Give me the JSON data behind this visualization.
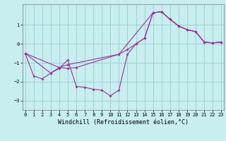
{
  "xlabel": "Windchill (Refroidissement éolien,°C)",
  "bg_color": "#c8eef0",
  "grid_color": "#99cccc",
  "line_color": "#993399",
  "series": [
    {
      "x": [
        0,
        1,
        2,
        3,
        4,
        5,
        6,
        7,
        8,
        9,
        10,
        11,
        12,
        13,
        14,
        15,
        16,
        17,
        18,
        19,
        20,
        21,
        22,
        23
      ],
      "y": [
        -0.5,
        -1.7,
        -1.85,
        -1.55,
        -1.3,
        -0.85,
        -2.25,
        -2.3,
        -2.4,
        -2.45,
        -2.75,
        -2.45,
        -0.55,
        0.0,
        0.3,
        1.65,
        1.7,
        1.3,
        0.95,
        0.75,
        0.65,
        0.1,
        0.05,
        0.1
      ]
    },
    {
      "x": [
        0,
        3,
        4,
        5,
        6,
        11,
        12,
        13,
        14,
        15,
        16,
        17,
        18,
        19,
        20,
        21,
        22,
        23
      ],
      "y": [
        -0.5,
        -1.55,
        -1.25,
        -1.3,
        -1.25,
        -0.55,
        -0.3,
        0.0,
        0.3,
        1.65,
        1.7,
        1.3,
        0.95,
        0.75,
        0.65,
        0.1,
        0.05,
        0.1
      ]
    },
    {
      "x": [
        0,
        4,
        5,
        11,
        15,
        16,
        17,
        18,
        19,
        20,
        21,
        22,
        23
      ],
      "y": [
        -0.5,
        -1.25,
        -1.1,
        -0.55,
        1.65,
        1.7,
        1.3,
        0.95,
        0.75,
        0.65,
        0.1,
        0.05,
        0.1
      ]
    }
  ],
  "xlim": [
    -0.3,
    23.3
  ],
  "ylim": [
    -3.5,
    2.1
  ],
  "xticks": [
    0,
    1,
    2,
    3,
    4,
    5,
    6,
    7,
    8,
    9,
    10,
    11,
    12,
    13,
    14,
    15,
    16,
    17,
    18,
    19,
    20,
    21,
    22,
    23
  ],
  "yticks": [
    -3,
    -2,
    -1,
    0,
    1
  ],
  "tick_fontsize": 5.0,
  "label_fontsize": 6.0
}
